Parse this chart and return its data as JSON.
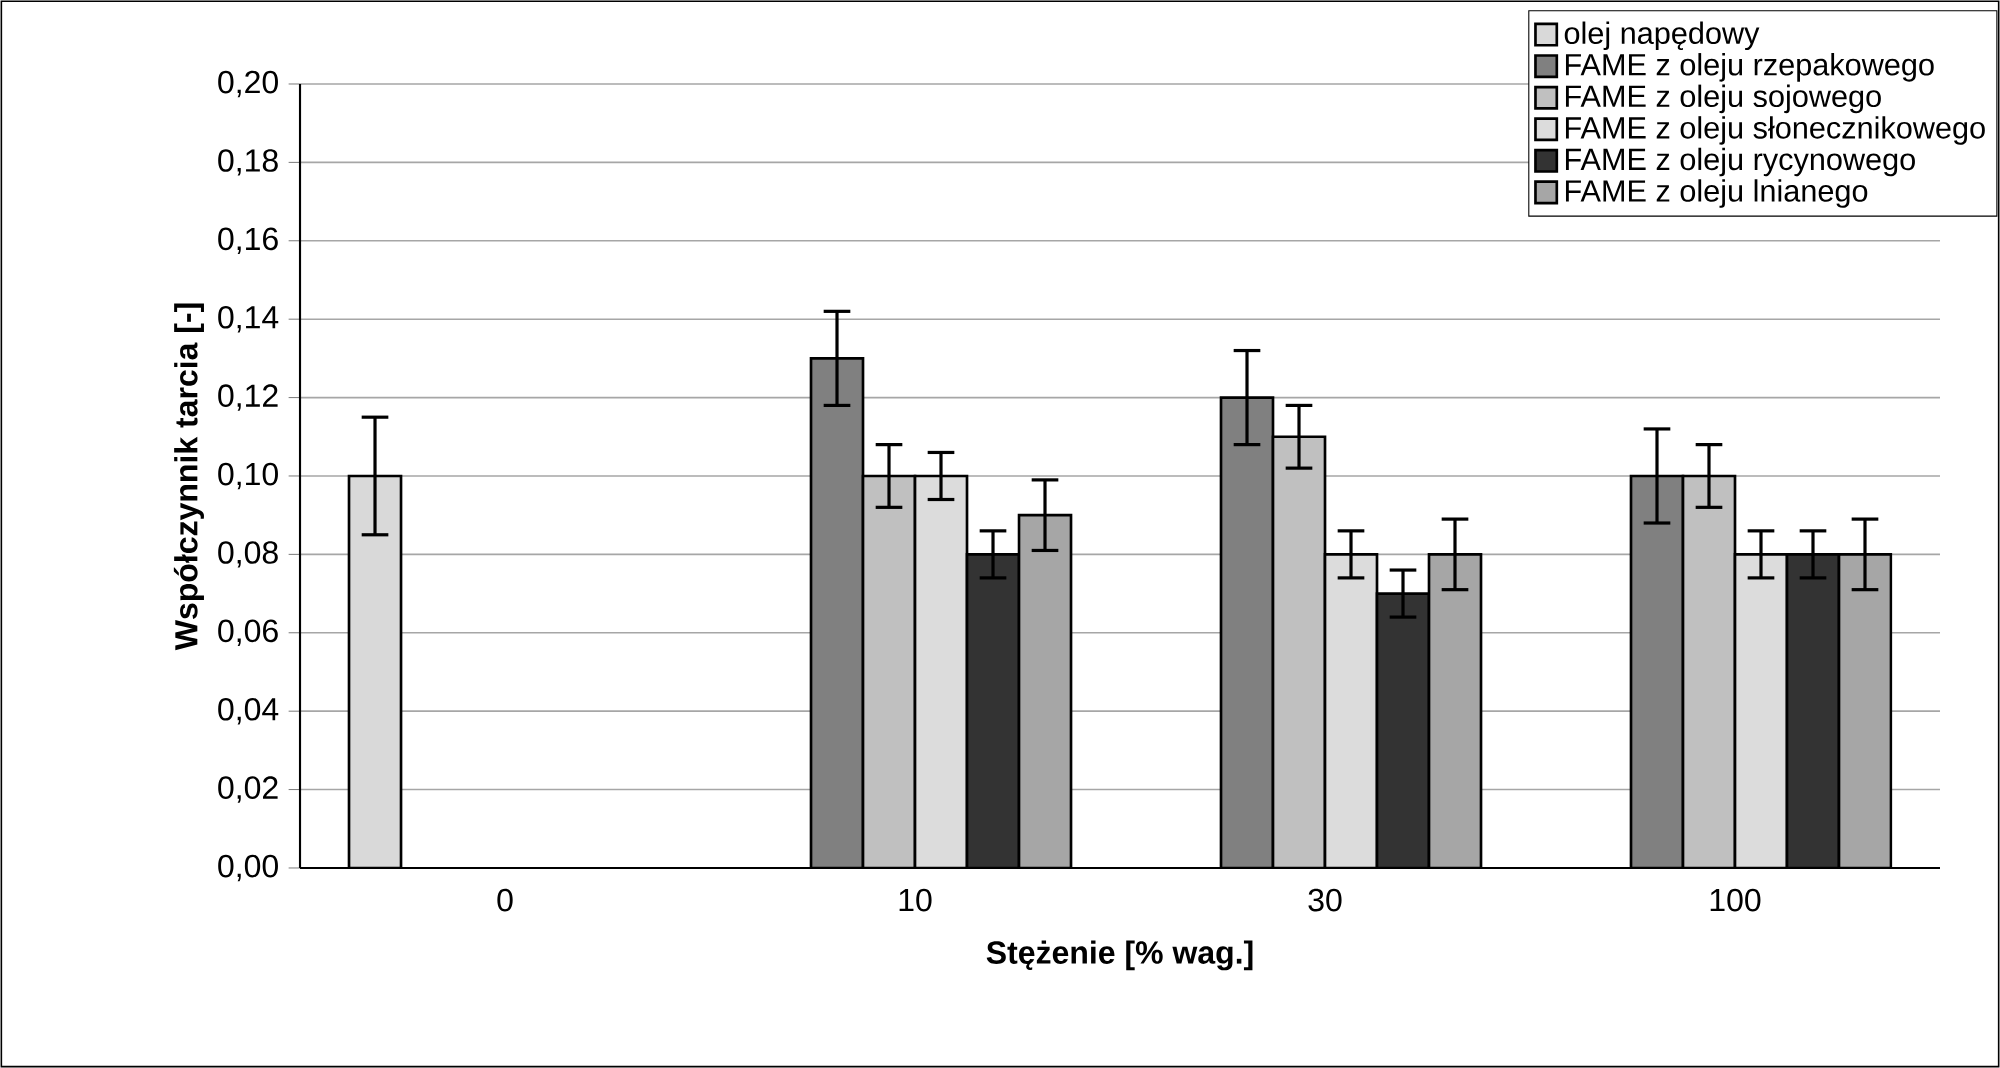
{
  "chart_data": {
    "type": "bar",
    "xlabel": "Stężenie [% wag.]",
    "ylabel": "Współczynnik tarcia [-]",
    "categories": [
      "0",
      "10",
      "30",
      "100"
    ],
    "series": [
      {
        "name": "olej napędowy",
        "color": "#d9d9d9",
        "values": [
          0.1,
          null,
          null,
          null
        ],
        "errors": [
          0.015,
          null,
          null,
          null
        ]
      },
      {
        "name": "FAME z oleju rzepakowego",
        "color": "#808080",
        "values": [
          null,
          0.13,
          0.12,
          0.1
        ],
        "errors": [
          null,
          0.012,
          0.012,
          0.012
        ]
      },
      {
        "name": "FAME z oleju sojowego",
        "color": "#c0c0c0",
        "values": [
          null,
          0.1,
          0.11,
          0.1
        ],
        "errors": [
          null,
          0.008,
          0.008,
          0.008
        ]
      },
      {
        "name": "FAME z oleju słonecznikowego",
        "color": "#dcdcdc",
        "values": [
          null,
          0.1,
          0.08,
          0.08
        ],
        "errors": [
          null,
          0.006,
          0.006,
          0.006
        ]
      },
      {
        "name": "FAME z oleju rycynowego",
        "color": "#333333",
        "values": [
          null,
          0.08,
          0.07,
          0.08
        ],
        "errors": [
          null,
          0.006,
          0.006,
          0.006
        ]
      },
      {
        "name": "FAME z oleju lnianego",
        "color": "#a6a6a6",
        "values": [
          null,
          0.09,
          0.08,
          0.08
        ],
        "errors": [
          null,
          0.009,
          0.009,
          0.009
        ]
      }
    ],
    "ylim": [
      0,
      0.2
    ],
    "yticks": [
      {
        "value": 0,
        "label": "0,00"
      },
      {
        "value": 0.02,
        "label": "0,02"
      },
      {
        "value": 0.04,
        "label": "0,04"
      },
      {
        "value": 0.06,
        "label": "0,06"
      },
      {
        "value": 0.08,
        "label": "0,08"
      },
      {
        "value": 0.1,
        "label": "0,10"
      },
      {
        "value": 0.12,
        "label": "0,12"
      },
      {
        "value": 0.14,
        "label": "0,14"
      },
      {
        "value": 0.16,
        "label": "0,16"
      },
      {
        "value": 0.18,
        "label": "0,18"
      },
      {
        "value": 0.2,
        "label": "0,20"
      }
    ],
    "grid": "y",
    "legend": "top right"
  }
}
